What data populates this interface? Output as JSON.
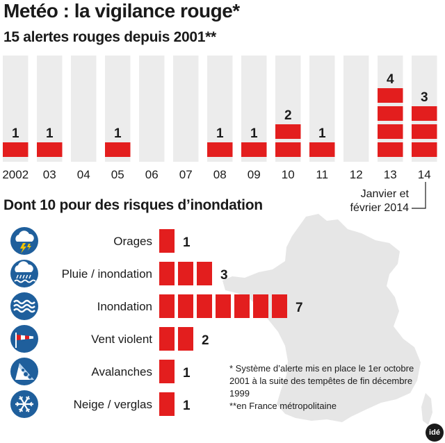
{
  "title": "Metéo : la vigilance rouge*",
  "subtitle": "15 alertes rouges depuis 2001**",
  "subtitle2": "Dont 10 pour des risques d’inondation",
  "annotation": [
    "Janvier et",
    "février 2014"
  ],
  "notes": [
    "* Système d’alerte mis en place le 1er octobre",
    "2001 à la suite des tempêtes de fin décembre",
    "1999",
    "**en France métropolitaine"
  ],
  "logo": "idé",
  "colors": {
    "bar": "#e31e1e",
    "column_bg": "#ececec",
    "icon_bg": "#1f5f9c",
    "map": "#e6e6e6"
  },
  "chart_data": [
    {
      "type": "bar",
      "title": "15 alertes rouges depuis 2001**",
      "categories": [
        "2002",
        "03",
        "04",
        "05",
        "06",
        "07",
        "08",
        "09",
        "10",
        "11",
        "12",
        "13",
        "14"
      ],
      "values": [
        1,
        1,
        0,
        1,
        0,
        0,
        1,
        1,
        2,
        1,
        0,
        4,
        3
      ],
      "unit": "alertes rouges"
    },
    {
      "type": "bar",
      "orientation": "horizontal",
      "title": "Dont 10 pour des risques d’inondation",
      "categories": [
        {
          "label": "Orages",
          "icon": "storm-icon"
        },
        {
          "label": "Pluie / inondation",
          "icon": "rain-flood-icon"
        },
        {
          "label": "Inondation",
          "icon": "flood-waves-icon"
        },
        {
          "label": "Vent violent",
          "icon": "windsock-icon"
        },
        {
          "label": "Avalanches",
          "icon": "avalanche-icon"
        },
        {
          "label": "Neige / verglas",
          "icon": "snowflake-icon"
        }
      ],
      "values": [
        1,
        3,
        7,
        2,
        1,
        1
      ]
    }
  ]
}
